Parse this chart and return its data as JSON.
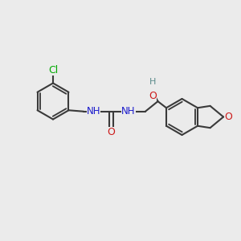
{
  "bg_color": "#ebebeb",
  "bond_color": "#3a3a3a",
  "bond_width": 1.5,
  "atom_colors": {
    "Cl": "#00aa00",
    "N": "#1a1acc",
    "O": "#cc1a1a",
    "H": "#5a8a8a",
    "C": "#3a3a3a"
  },
  "font_size_atom": 8.5
}
